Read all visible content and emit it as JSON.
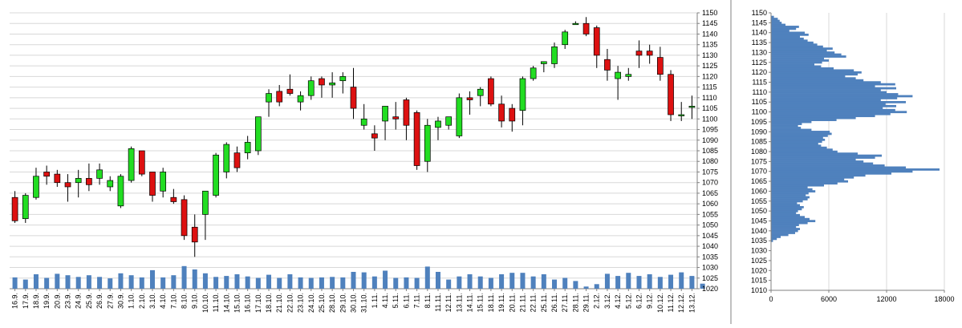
{
  "chart_data": [
    {
      "type": "candlestick",
      "xlabel": "",
      "ylabel": "",
      "ylim": [
        1020,
        1150
      ],
      "y_ticks": [
        1020,
        1025,
        1030,
        1035,
        1040,
        1045,
        1050,
        1055,
        1060,
        1065,
        1070,
        1075,
        1080,
        1085,
        1090,
        1095,
        1100,
        1105,
        1110,
        1115,
        1120,
        1125,
        1130,
        1135,
        1140,
        1145,
        1150
      ],
      "grid": true,
      "colors": {
        "up": "#22dd22",
        "down": "#dd1111",
        "volume": "#4f81bd",
        "grid": "#d8d8d8"
      },
      "candles": [
        {
          "date": "16.9.",
          "open": 1063,
          "high": 1066,
          "low": 1051,
          "close": 1052
        },
        {
          "date": "17.9.",
          "open": 1053,
          "high": 1065,
          "low": 1051,
          "close": 1064
        },
        {
          "date": "18.9.",
          "open": 1063,
          "high": 1077,
          "low": 1062,
          "close": 1073
        },
        {
          "date": "19.9.",
          "open": 1075,
          "high": 1078,
          "low": 1069,
          "close": 1073
        },
        {
          "date": "20.9.",
          "open": 1074,
          "high": 1076,
          "low": 1068,
          "close": 1070
        },
        {
          "date": "23.9.",
          "open": 1070,
          "high": 1074,
          "low": 1061,
          "close": 1068
        },
        {
          "date": "24.9.",
          "open": 1070,
          "high": 1076,
          "low": 1063,
          "close": 1072
        },
        {
          "date": "25.9.",
          "open": 1072,
          "high": 1079,
          "low": 1066,
          "close": 1069
        },
        {
          "date": "26.9.",
          "open": 1072,
          "high": 1079,
          "low": 1069,
          "close": 1076
        },
        {
          "date": "27.9.",
          "open": 1068,
          "high": 1073,
          "low": 1066,
          "close": 1071
        },
        {
          "date": "30.9.",
          "open": 1059,
          "high": 1074,
          "low": 1058,
          "close": 1073
        },
        {
          "date": "1.10.",
          "open": 1071,
          "high": 1087,
          "low": 1070,
          "close": 1086
        },
        {
          "date": "2.10.",
          "open": 1085,
          "high": 1085,
          "low": 1073,
          "close": 1074
        },
        {
          "date": "3.10.",
          "open": 1075,
          "high": 1075,
          "low": 1061,
          "close": 1064
        },
        {
          "date": "4.10.",
          "open": 1066,
          "high": 1077,
          "low": 1063,
          "close": 1075
        },
        {
          "date": "7.10.",
          "open": 1063,
          "high": 1067,
          "low": 1060,
          "close": 1061
        },
        {
          "date": "8.10.",
          "open": 1062,
          "high": 1064,
          "low": 1043,
          "close": 1045
        },
        {
          "date": "9.10.",
          "open": 1049,
          "high": 1055,
          "low": 1035,
          "close": 1042
        },
        {
          "date": "10.10.",
          "open": 1055,
          "high": 1066,
          "low": 1043,
          "close": 1066
        },
        {
          "date": "11.10.",
          "open": 1064,
          "high": 1084,
          "low": 1063,
          "close": 1083
        },
        {
          "date": "14.10.",
          "open": 1075,
          "high": 1089,
          "low": 1072,
          "close": 1088
        },
        {
          "date": "15.10.",
          "open": 1084,
          "high": 1087,
          "low": 1075,
          "close": 1077
        },
        {
          "date": "16.10.",
          "open": 1084,
          "high": 1092,
          "low": 1081,
          "close": 1089
        },
        {
          "date": "17.10.",
          "open": 1085,
          "high": 1101,
          "low": 1083,
          "close": 1101
        },
        {
          "date": "18.10.",
          "open": 1108,
          "high": 1114,
          "low": 1101,
          "close": 1112
        },
        {
          "date": "21.10.",
          "open": 1113,
          "high": 1116,
          "low": 1106,
          "close": 1108
        },
        {
          "date": "22.10.",
          "open": 1114,
          "high": 1121,
          "low": 1111,
          "close": 1112
        },
        {
          "date": "23.10.",
          "open": 1108,
          "high": 1113,
          "low": 1104,
          "close": 1111
        },
        {
          "date": "24.10.",
          "open": 1111,
          "high": 1120,
          "low": 1109,
          "close": 1118
        },
        {
          "date": "25.10.",
          "open": 1119,
          "high": 1120,
          "low": 1110,
          "close": 1116
        },
        {
          "date": "28.10.",
          "open": 1116,
          "high": 1122,
          "low": 1110,
          "close": 1117
        },
        {
          "date": "29.10.",
          "open": 1118,
          "high": 1122,
          "low": 1112,
          "close": 1120
        },
        {
          "date": "30.10.",
          "open": 1115,
          "high": 1124,
          "low": 1100,
          "close": 1105
        },
        {
          "date": "31.10.",
          "open": 1097,
          "high": 1107,
          "low": 1095,
          "close": 1100
        },
        {
          "date": "1.11.",
          "open": 1093,
          "high": 1097,
          "low": 1085,
          "close": 1091
        },
        {
          "date": "4.11.",
          "open": 1099,
          "high": 1106,
          "low": 1090,
          "close": 1106
        },
        {
          "date": "5.11.",
          "open": 1101,
          "high": 1108,
          "low": 1095,
          "close": 1100
        },
        {
          "date": "6.11.",
          "open": 1109,
          "high": 1110,
          "low": 1090,
          "close": 1097
        },
        {
          "date": "7.11.",
          "open": 1103,
          "high": 1104,
          "low": 1076,
          "close": 1078
        },
        {
          "date": "8.11.",
          "open": 1080,
          "high": 1100,
          "low": 1075,
          "close": 1097
        },
        {
          "date": "11.11.",
          "open": 1096,
          "high": 1101,
          "low": 1090,
          "close": 1099
        },
        {
          "date": "12.11.",
          "open": 1097,
          "high": 1101,
          "low": 1095,
          "close": 1101
        },
        {
          "date": "13.11.",
          "open": 1092,
          "high": 1112,
          "low": 1091,
          "close": 1110
        },
        {
          "date": "14.11.",
          "open": 1110,
          "high": 1113,
          "low": 1102,
          "close": 1109
        },
        {
          "date": "15.11.",
          "open": 1111,
          "high": 1115,
          "low": 1106,
          "close": 1114
        },
        {
          "date": "18.11.",
          "open": 1119,
          "high": 1120,
          "low": 1106,
          "close": 1107
        },
        {
          "date": "19.11.",
          "open": 1107,
          "high": 1111,
          "low": 1096,
          "close": 1099
        },
        {
          "date": "20.11.",
          "open": 1105,
          "high": 1107,
          "low": 1094,
          "close": 1099
        },
        {
          "date": "21.11.",
          "open": 1104,
          "high": 1120,
          "low": 1097,
          "close": 1119
        },
        {
          "date": "22.11.",
          "open": 1119,
          "high": 1125,
          "low": 1118,
          "close": 1124
        },
        {
          "date": "25.11.",
          "open": 1126,
          "high": 1127,
          "low": 1122,
          "close": 1127
        },
        {
          "date": "26.11.",
          "open": 1126,
          "high": 1136,
          "low": 1124,
          "close": 1134
        },
        {
          "date": "27.11.",
          "open": 1135,
          "high": 1142,
          "low": 1133,
          "close": 1141
        },
        {
          "date": "28.11.",
          "open": 1145,
          "high": 1146,
          "low": 1145,
          "close": 1145
        },
        {
          "date": "29.11.",
          "open": 1145,
          "high": 1148,
          "low": 1139,
          "close": 1140
        },
        {
          "date": "2.12.",
          "open": 1143,
          "high": 1144,
          "low": 1124,
          "close": 1130
        },
        {
          "date": "3.12.",
          "open": 1128,
          "high": 1133,
          "low": 1118,
          "close": 1123
        },
        {
          "date": "4.12.",
          "open": 1119,
          "high": 1125,
          "low": 1109,
          "close": 1122
        },
        {
          "date": "5.12.",
          "open": 1120,
          "high": 1124,
          "low": 1118,
          "close": 1121
        },
        {
          "date": "6.12.",
          "open": 1132,
          "high": 1137,
          "low": 1124,
          "close": 1130
        },
        {
          "date": "9.12.",
          "open": 1132,
          "high": 1135,
          "low": 1126,
          "close": 1130
        },
        {
          "date": "10.12.",
          "open": 1129,
          "high": 1134,
          "low": 1118,
          "close": 1121
        },
        {
          "date": "11.12.",
          "open": 1121,
          "high": 1123,
          "low": 1099,
          "close": 1102
        },
        {
          "date": "12.12.",
          "open": 1102,
          "high": 1108,
          "low": 1099,
          "close": 1102
        },
        {
          "date": "13.12.",
          "open": 1106,
          "high": 1111,
          "low": 1100,
          "close": 1106
        }
      ],
      "volume_fraction": [
        0.47,
        0.38,
        0.6,
        0.45,
        0.62,
        0.56,
        0.49,
        0.56,
        0.49,
        0.43,
        0.64,
        0.56,
        0.47,
        0.77,
        0.47,
        0.56,
        0.94,
        0.8,
        0.64,
        0.49,
        0.53,
        0.6,
        0.51,
        0.45,
        0.58,
        0.45,
        0.6,
        0.47,
        0.45,
        0.47,
        0.49,
        0.47,
        0.7,
        0.68,
        0.51,
        0.75,
        0.45,
        0.47,
        0.45,
        0.92,
        0.7,
        0.38,
        0.51,
        0.6,
        0.51,
        0.45,
        0.6,
        0.66,
        0.66,
        0.51,
        0.6,
        0.38,
        0.45,
        0.32,
        0.09,
        0.19,
        0.62,
        0.53,
        0.66,
        0.53,
        0.6,
        0.49,
        0.58,
        0.68,
        0.53,
        0.21
      ]
    },
    {
      "type": "bar",
      "orientation": "horizontal",
      "xlabel": "",
      "ylabel": "",
      "xlim": [
        0,
        18000
      ],
      "x_ticks": [
        "0",
        "6000",
        "12000",
        "18000"
      ],
      "ylim": [
        1010,
        1150
      ],
      "y_ticks": [
        1010,
        1015,
        1020,
        1025,
        1030,
        1035,
        1040,
        1045,
        1050,
        1055,
        1060,
        1065,
        1070,
        1075,
        1080,
        1085,
        1090,
        1095,
        1100,
        1105,
        1110,
        1115,
        1120,
        1125,
        1130,
        1135,
        1140,
        1145,
        1150
      ],
      "grid": true,
      "color": "#4f81bd",
      "profile": [
        [
          1035,
          200
        ],
        [
          1036,
          600
        ],
        [
          1037,
          1000
        ],
        [
          1038,
          1800
        ],
        [
          1039,
          2500
        ],
        [
          1040,
          2800
        ],
        [
          1041,
          3000
        ],
        [
          1042,
          2600
        ],
        [
          1043,
          2900
        ],
        [
          1044,
          3800
        ],
        [
          1045,
          4600
        ],
        [
          1046,
          4000
        ],
        [
          1047,
          3500
        ],
        [
          1048,
          3000
        ],
        [
          1049,
          2600
        ],
        [
          1050,
          2800
        ],
        [
          1051,
          3200
        ],
        [
          1052,
          3400
        ],
        [
          1053,
          3000
        ],
        [
          1054,
          2700
        ],
        [
          1055,
          3300
        ],
        [
          1056,
          3800
        ],
        [
          1057,
          4000
        ],
        [
          1058,
          3600
        ],
        [
          1059,
          3900
        ],
        [
          1060,
          4600
        ],
        [
          1061,
          4300
        ],
        [
          1062,
          3800
        ],
        [
          1063,
          5500
        ],
        [
          1064,
          6900
        ],
        [
          1065,
          8000
        ],
        [
          1066,
          7600
        ],
        [
          1067,
          8600
        ],
        [
          1068,
          9800
        ],
        [
          1069,
          12500
        ],
        [
          1070,
          14700
        ],
        [
          1071,
          17500
        ],
        [
          1072,
          14000
        ],
        [
          1073,
          11800
        ],
        [
          1074,
          10600
        ],
        [
          1075,
          9600
        ],
        [
          1076,
          8800
        ],
        [
          1077,
          10800
        ],
        [
          1078,
          11500
        ],
        [
          1079,
          9000
        ],
        [
          1080,
          6900
        ],
        [
          1081,
          6400
        ],
        [
          1082,
          5800
        ],
        [
          1083,
          5200
        ],
        [
          1084,
          4900
        ],
        [
          1085,
          5300
        ],
        [
          1086,
          5600
        ],
        [
          1087,
          5400
        ],
        [
          1088,
          5900
        ],
        [
          1089,
          6300
        ],
        [
          1090,
          6100
        ],
        [
          1091,
          4200
        ],
        [
          1092,
          3100
        ],
        [
          1093,
          2800
        ],
        [
          1094,
          3200
        ],
        [
          1095,
          4200
        ],
        [
          1096,
          6800
        ],
        [
          1097,
          8800
        ],
        [
          1098,
          10800
        ],
        [
          1099,
          12400
        ],
        [
          1100,
          14100
        ],
        [
          1101,
          12900
        ],
        [
          1102,
          11600
        ],
        [
          1103,
          13000
        ],
        [
          1104,
          11900
        ],
        [
          1105,
          14000
        ],
        [
          1106,
          11400
        ],
        [
          1107,
          13100
        ],
        [
          1108,
          14700
        ],
        [
          1109,
          13200
        ],
        [
          1110,
          12000
        ],
        [
          1111,
          11400
        ],
        [
          1112,
          13000
        ],
        [
          1113,
          10800
        ],
        [
          1114,
          12900
        ],
        [
          1115,
          11400
        ],
        [
          1116,
          9600
        ],
        [
          1117,
          8800
        ],
        [
          1118,
          7700
        ],
        [
          1119,
          9000
        ],
        [
          1120,
          9400
        ],
        [
          1121,
          8600
        ],
        [
          1122,
          6500
        ],
        [
          1123,
          5200
        ],
        [
          1124,
          4500
        ],
        [
          1125,
          5300
        ],
        [
          1126,
          6000
        ],
        [
          1127,
          5500
        ],
        [
          1128,
          7800
        ],
        [
          1129,
          7300
        ],
        [
          1130,
          6600
        ],
        [
          1131,
          5800
        ],
        [
          1132,
          6400
        ],
        [
          1133,
          5400
        ],
        [
          1134,
          4800
        ],
        [
          1135,
          4400
        ],
        [
          1136,
          3800
        ],
        [
          1137,
          3400
        ],
        [
          1138,
          3000
        ],
        [
          1139,
          3900
        ],
        [
          1140,
          3500
        ],
        [
          1141,
          1900
        ],
        [
          1142,
          2600
        ],
        [
          1143,
          2900
        ],
        [
          1144,
          1500
        ],
        [
          1145,
          1100
        ],
        [
          1146,
          900
        ],
        [
          1147,
          700
        ],
        [
          1148,
          300
        ]
      ]
    }
  ]
}
